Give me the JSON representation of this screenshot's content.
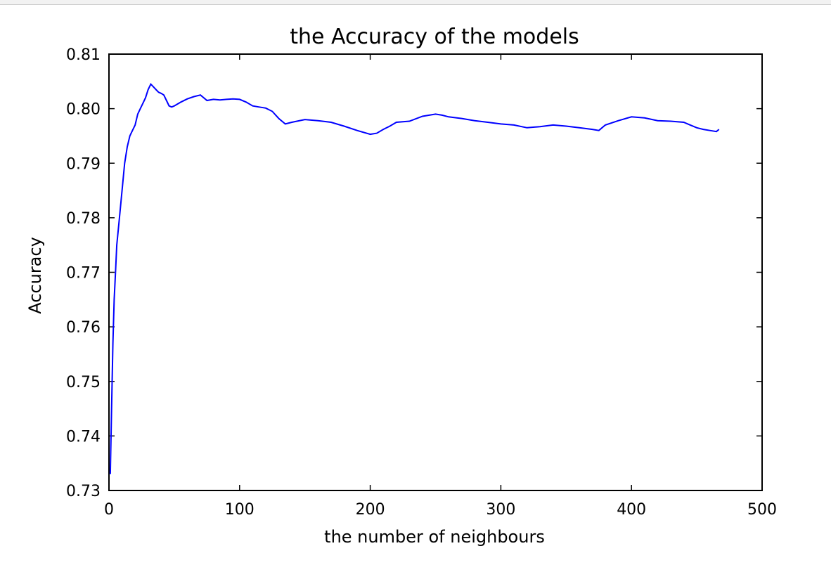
{
  "chart_data": {
    "type": "line",
    "title": "the Accuracy of the models",
    "xlabel": "the number of neighbours",
    "ylabel": "Accuracy",
    "xlim": [
      0,
      500
    ],
    "ylim": [
      0.73,
      0.81
    ],
    "grid": false,
    "x_ticks": [
      0,
      100,
      200,
      300,
      400,
      500
    ],
    "y_ticks": [
      0.73,
      0.74,
      0.75,
      0.76,
      0.77,
      0.78,
      0.79,
      0.8,
      0.81
    ],
    "x_tick_labels": [
      "0",
      "100",
      "200",
      "300",
      "400",
      "500"
    ],
    "y_tick_labels": [
      "0.73",
      "0.74",
      "0.75",
      "0.76",
      "0.77",
      "0.78",
      "0.79",
      "0.80",
      "0.81"
    ],
    "series": [
      {
        "color": "#0000ff",
        "x": [
          1,
          2,
          3,
          4,
          5,
          6,
          8,
          10,
          12,
          14,
          16,
          18,
          20,
          22,
          24,
          26,
          28,
          30,
          32,
          34,
          36,
          38,
          40,
          42,
          44,
          46,
          48,
          50,
          55,
          60,
          65,
          70,
          75,
          80,
          85,
          90,
          95,
          100,
          105,
          110,
          115,
          120,
          125,
          130,
          135,
          140,
          150,
          160,
          170,
          180,
          190,
          200,
          205,
          210,
          215,
          220,
          230,
          240,
          250,
          255,
          260,
          270,
          280,
          290,
          300,
          310,
          320,
          330,
          340,
          350,
          360,
          370,
          375,
          380,
          390,
          400,
          410,
          420,
          430,
          440,
          445,
          450,
          455,
          460,
          465,
          467
        ],
        "y": [
          0.733,
          0.745,
          0.757,
          0.765,
          0.77,
          0.775,
          0.78,
          0.785,
          0.79,
          0.793,
          0.795,
          0.796,
          0.797,
          0.799,
          0.8,
          0.801,
          0.802,
          0.8035,
          0.8045,
          0.804,
          0.8035,
          0.803,
          0.8028,
          0.8025,
          0.8015,
          0.8005,
          0.8003,
          0.8005,
          0.8012,
          0.8018,
          0.8022,
          0.8025,
          0.8015,
          0.8017,
          0.8016,
          0.8017,
          0.8018,
          0.8017,
          0.8012,
          0.8005,
          0.8003,
          0.8001,
          0.7995,
          0.7982,
          0.7972,
          0.7975,
          0.798,
          0.7978,
          0.7975,
          0.7968,
          0.796,
          0.7953,
          0.7955,
          0.7962,
          0.7968,
          0.7975,
          0.7977,
          0.7986,
          0.799,
          0.7988,
          0.7985,
          0.7982,
          0.7978,
          0.7975,
          0.7972,
          0.797,
          0.7965,
          0.7967,
          0.797,
          0.7968,
          0.7965,
          0.7962,
          0.796,
          0.797,
          0.7978,
          0.7985,
          0.7983,
          0.7978,
          0.7977,
          0.7975,
          0.797,
          0.7965,
          0.7962,
          0.796,
          0.7958,
          0.7962
        ]
      }
    ]
  }
}
